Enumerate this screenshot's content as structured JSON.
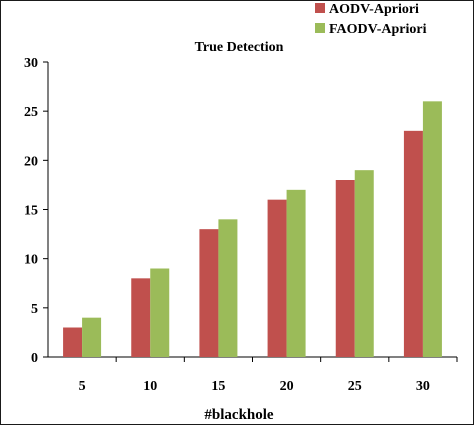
{
  "chart_data": {
    "type": "bar",
    "title": "True Detection",
    "xlabel": "#blackhole",
    "ylabel": "",
    "categories": [
      "5",
      "10",
      "15",
      "20",
      "25",
      "30"
    ],
    "series": [
      {
        "name": "AODV-Apriori",
        "color": "#c0504d",
        "values": [
          3,
          8,
          13,
          16,
          18,
          23
        ]
      },
      {
        "name": "FAODV-Apriori",
        "color": "#9bbb59",
        "values": [
          4,
          9,
          14,
          17,
          19,
          26
        ]
      }
    ],
    "ylim": [
      0,
      30
    ],
    "yticks": [
      0,
      5,
      10,
      15,
      20,
      25,
      30
    ],
    "grid": false,
    "legend_position": "top-right"
  }
}
